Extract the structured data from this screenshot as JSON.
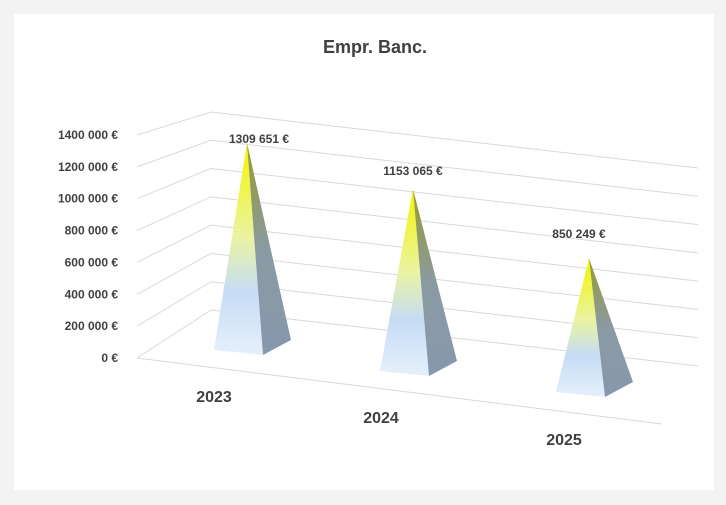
{
  "chart_data": {
    "type": "bar",
    "shape": "pyramid-3d",
    "title": "Empr. Banc.",
    "xlabel": "",
    "ylabel": "",
    "categories": [
      "2023",
      "2024",
      "2025"
    ],
    "values": [
      1309651,
      1153065,
      850249
    ],
    "data_labels": [
      "1309 651 €",
      "1153 065 €",
      "850 249 €"
    ],
    "y_ticks": [
      "0 €",
      "200 000 €",
      "400 000 €",
      "600 000 €",
      "800 000 €",
      "1000 000 €",
      "1200 000 €",
      "1400 000 €"
    ],
    "ylim": [
      0,
      1400000
    ],
    "grid": true,
    "legend": "none",
    "colors": {
      "top": "#f5f500",
      "mid": "#e6f2a8",
      "bottom": "#c6dcf5",
      "side": "#8a9cb2",
      "grid": "#d9d9d9",
      "text": "#404040"
    }
  }
}
